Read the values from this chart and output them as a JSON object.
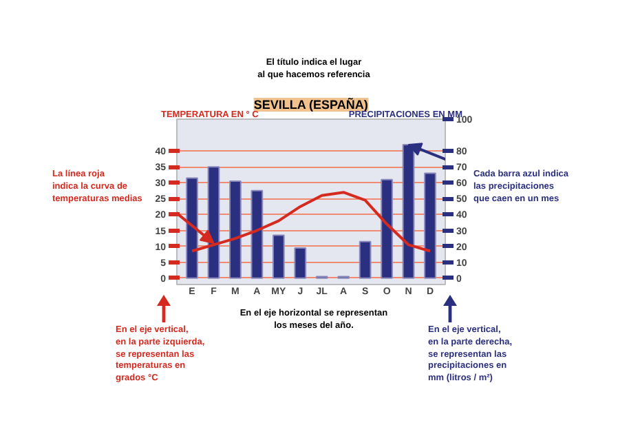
{
  "chart_data": {
    "type": "bar",
    "title": "SEVILLA (ESPAÑA)",
    "categories": [
      "E",
      "F",
      "M",
      "A",
      "MY",
      "J",
      "JL",
      "A",
      "S",
      "O",
      "N",
      "D"
    ],
    "ylabel": "TEMPERATURA EN ° C",
    "y2label": "PRECIPITACIONES EN MM",
    "series": [
      {
        "type": "bar",
        "axis": "y2",
        "color": "#2b2f80",
        "values": [
          63,
          70,
          61,
          55,
          27,
          19,
          1,
          1,
          23,
          62,
          84,
          66
        ]
      },
      {
        "type": "line",
        "color": "#d42a1f",
        "values": [
          8.5,
          10.5,
          12.5,
          15,
          18,
          22.5,
          26,
          27,
          24.5,
          17,
          10.5,
          8.5
        ]
      }
    ],
    "ylim": [
      -2,
      50
    ],
    "yticks": [
      0,
      5,
      10,
      15,
      20,
      25,
      30,
      35,
      40
    ],
    "y2lim": [
      -4,
      100
    ],
    "y2ticks": [
      0,
      10,
      20,
      30,
      40,
      50,
      60,
      70,
      80,
      100
    ],
    "grid": "y",
    "marker": "none",
    "annotations": [
      "El título indica el lugar\nal que hacemos referencia",
      {
        "text": "La línea roja\nindica la curva de\ntemperaturas medias",
        "x": "F",
        "y": 11
      },
      {
        "text": "Cada barra azul indica\nlas precipitaciones\nque caen en un mes",
        "x": "N",
        "y": 42
      },
      "En el eje horizontal se representan\nlos meses del año.",
      "En el eje vertical,\nen la parte izquierda,\nse representan las\ntemperaturas en\ngrados °C",
      "En el eje vertical,\nen la parte derecha,\nse representan las\nprecipitaciones en\nmm (litros / m²)"
    ]
  }
}
